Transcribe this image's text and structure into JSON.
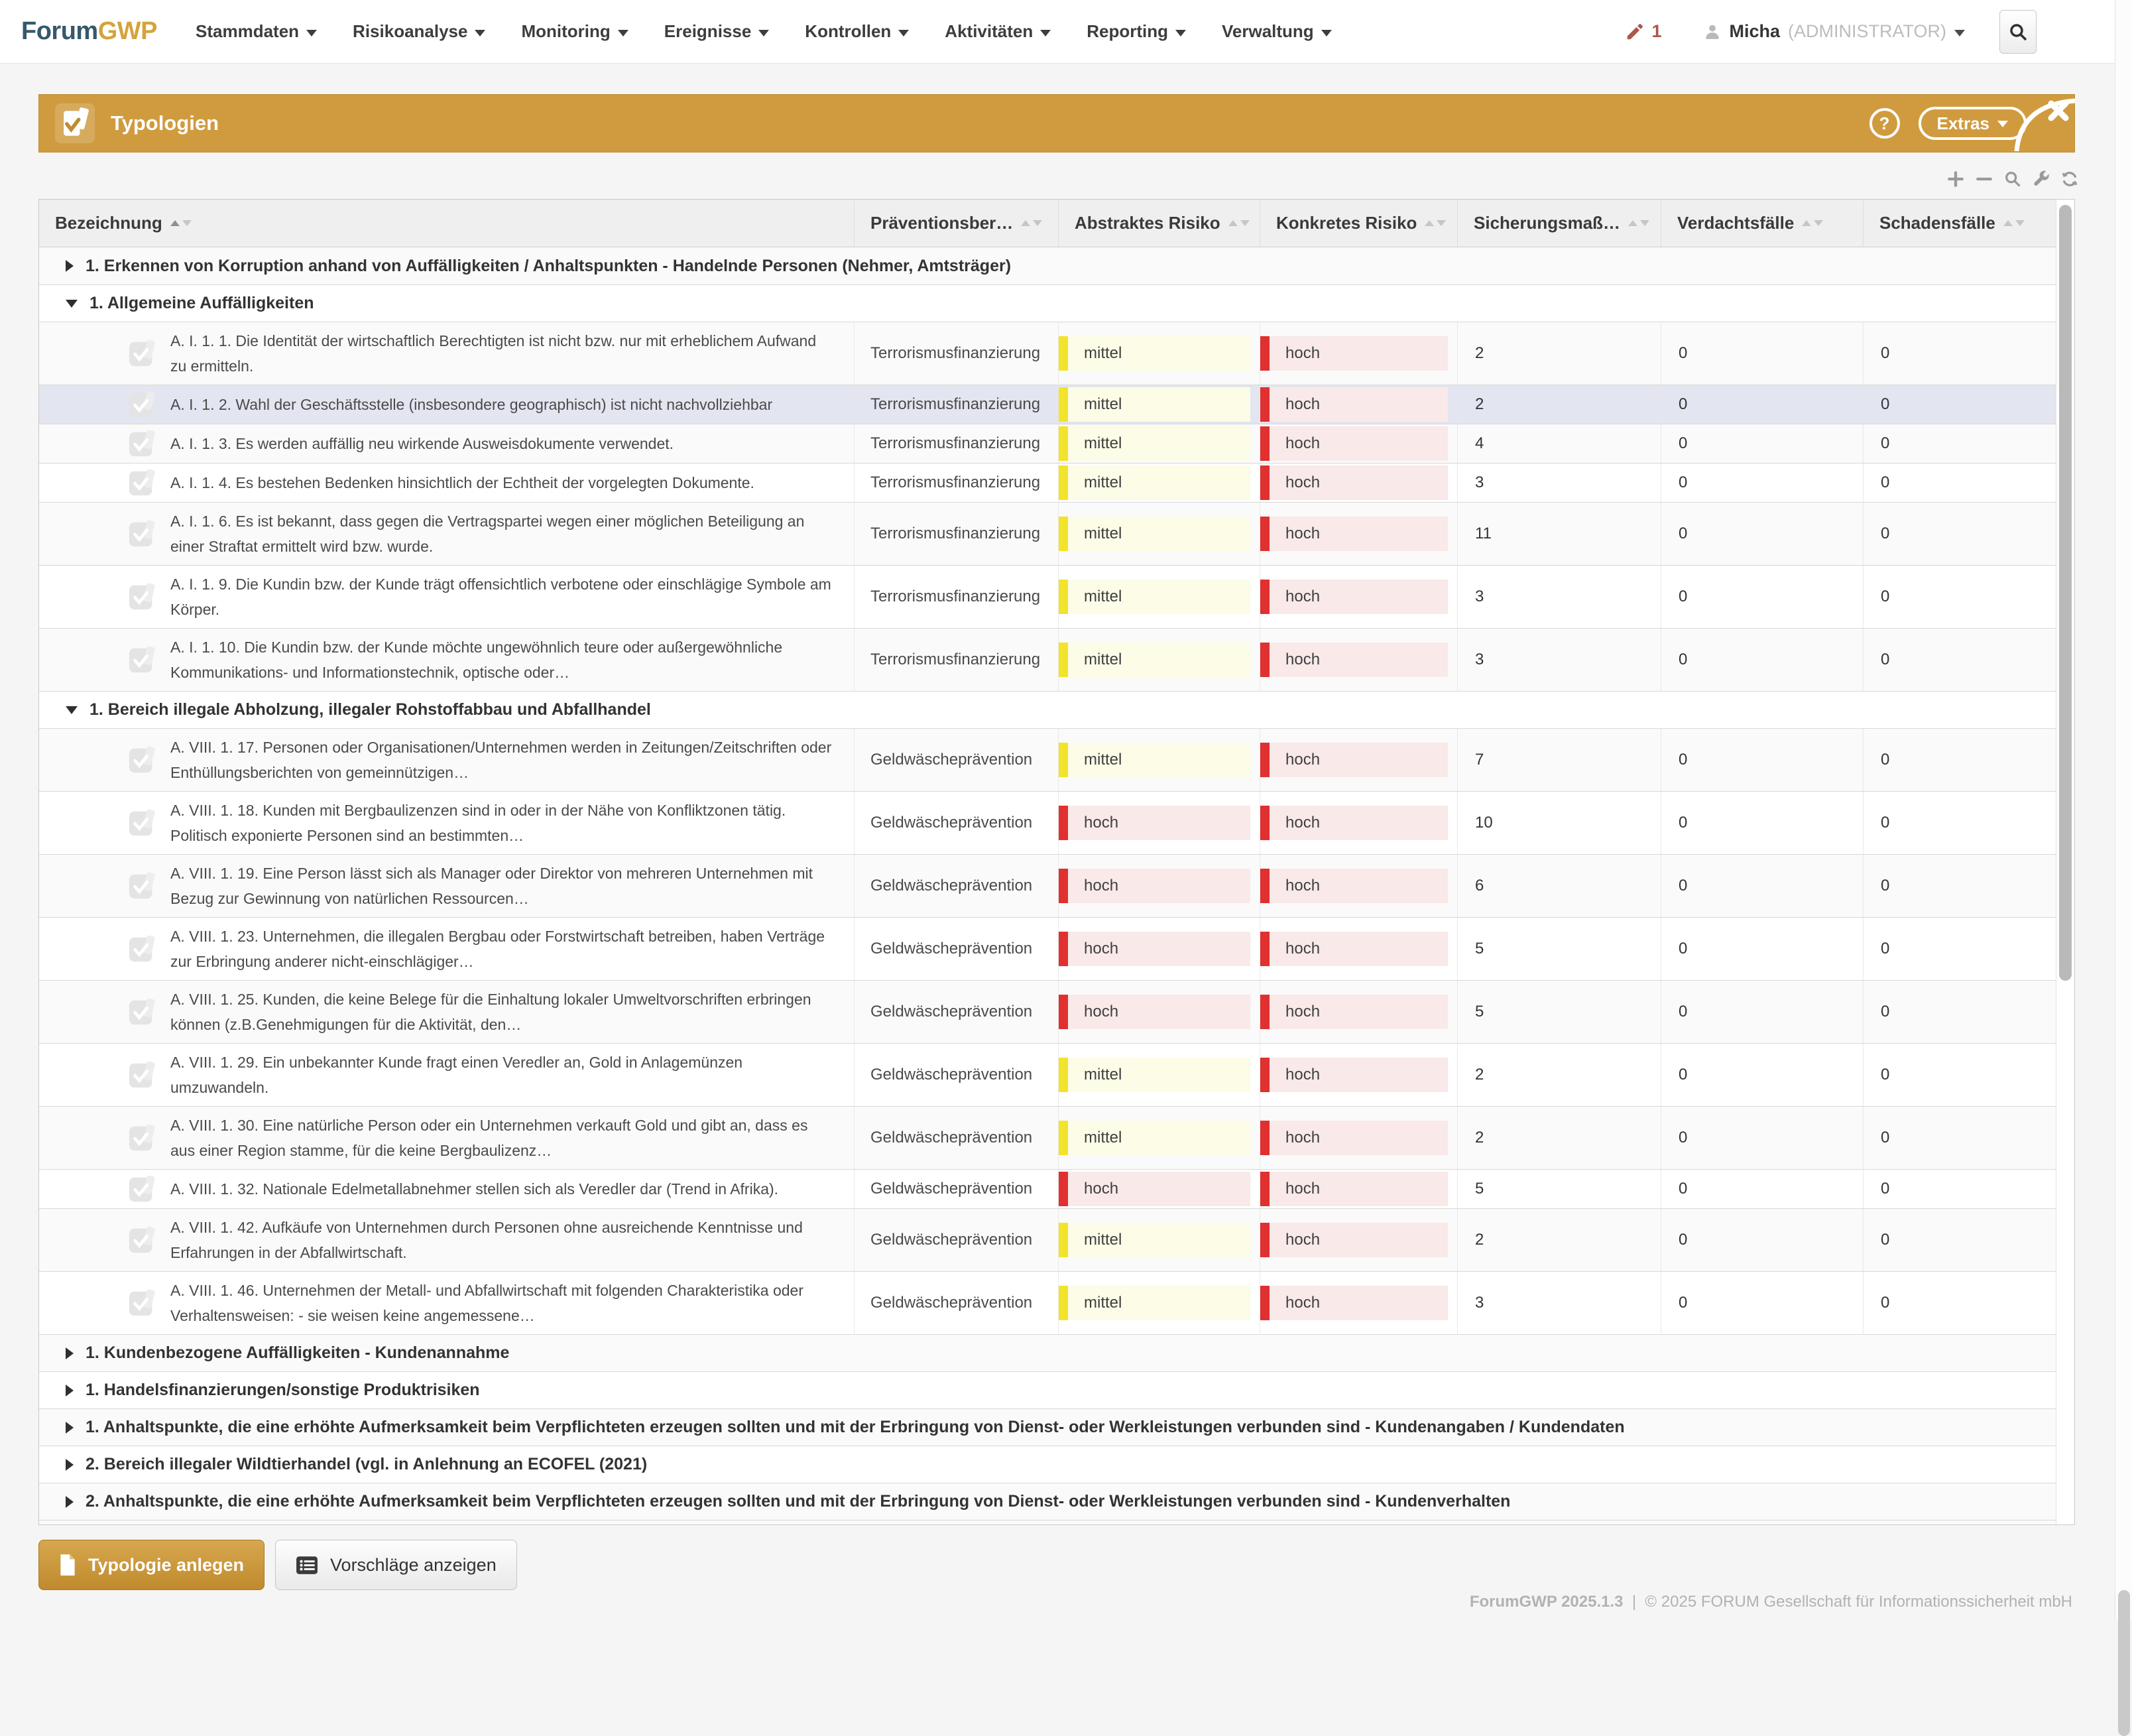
{
  "brand": {
    "first": "Forum",
    "second": "GWP"
  },
  "nav": {
    "items": [
      "Stammdaten",
      "Risikoanalyse",
      "Monitoring",
      "Ereignisse",
      "Kontrollen",
      "Aktivitäten",
      "Reporting",
      "Verwaltung"
    ],
    "edit_count": "1",
    "user": {
      "name": "Micha",
      "role": "(ADMINISTRATOR)"
    }
  },
  "panel": {
    "title": "Typologien",
    "help_label": "?",
    "extras_label": "Extras"
  },
  "toolbar": {
    "icons": [
      "add-icon",
      "remove-icon",
      "search-icon",
      "wrench-icon",
      "refresh-icon"
    ]
  },
  "colors": {
    "accent": "#d09b3f",
    "highlight_row": "#e3e5f0",
    "risk": {
      "mittel": {
        "bar": "#f2e32b",
        "bg": "#fcfce7"
      },
      "hoch": {
        "bar": "#e03030",
        "bg": "#f9e9e9"
      }
    }
  },
  "table": {
    "columns": [
      "Bezeichnung",
      "Präventionsber…",
      "Abstraktes Risiko",
      "Konkretes Risiko",
      "Sicherungsmaß…",
      "Verdachtsfälle",
      "Schadensfälle"
    ],
    "rows": [
      {
        "type": "group",
        "expanded": false,
        "label": "1. Erkennen von Korruption anhand von Auffälligkeiten / Anhaltspunkten - Handelnde Personen (Nehmer, Amtsträger)"
      },
      {
        "type": "group",
        "expanded": true,
        "label": "1. Allgemeine Auffälligkeiten"
      },
      {
        "type": "item",
        "name": "A. I. 1. 1. Die Identität der wirtschaftlich Berechtigten ist nicht bzw. nur mit erheblichem Aufwand zu ermitteln.",
        "prevention": "Terrorismusfinanzierung",
        "abstract": "mittel",
        "concrete": "hoch",
        "measures": "2",
        "suspicions": "0",
        "damages": "0",
        "highlighted": false
      },
      {
        "type": "item",
        "name": "A. I. 1. 2. Wahl der Geschäftsstelle (insbesondere geographisch) ist nicht nachvollziehbar",
        "prevention": "Terrorismusfinanzierung",
        "abstract": "mittel",
        "concrete": "hoch",
        "measures": "2",
        "suspicions": "0",
        "damages": "0",
        "highlighted": true
      },
      {
        "type": "item",
        "name": "A. I. 1. 3. Es werden auffällig neu wirkende Ausweisdokumente verwendet.",
        "prevention": "Terrorismusfinanzierung",
        "abstract": "mittel",
        "concrete": "hoch",
        "measures": "4",
        "suspicions": "0",
        "damages": "0",
        "highlighted": false
      },
      {
        "type": "item",
        "name": "A. I. 1. 4. Es bestehen Bedenken hinsichtlich der Echtheit der vorgelegten Dokumente.",
        "prevention": "Terrorismusfinanzierung",
        "abstract": "mittel",
        "concrete": "hoch",
        "measures": "3",
        "suspicions": "0",
        "damages": "0",
        "highlighted": false
      },
      {
        "type": "item",
        "name": "A. I. 1. 6. Es ist bekannt, dass gegen die Vertragspartei wegen einer möglichen Beteiligung an einer Straftat ermittelt wird bzw. wurde.",
        "prevention": "Terrorismusfinanzierung",
        "abstract": "mittel",
        "concrete": "hoch",
        "measures": "11",
        "suspicions": "0",
        "damages": "0",
        "highlighted": false
      },
      {
        "type": "item",
        "name": "A. I. 1. 9. Die Kundin bzw. der Kunde trägt offensichtlich verbotene oder einschlägige Symbole am Körper.",
        "prevention": "Terrorismusfinanzierung",
        "abstract": "mittel",
        "concrete": "hoch",
        "measures": "3",
        "suspicions": "0",
        "damages": "0",
        "highlighted": false
      },
      {
        "type": "item",
        "name": "A. I. 1. 10. Die Kundin bzw. der Kunde möchte ungewöhnlich teure oder außergewöhnliche Kommunikations- und Informationstechnik, optische oder…",
        "prevention": "Terrorismusfinanzierung",
        "abstract": "mittel",
        "concrete": "hoch",
        "measures": "3",
        "suspicions": "0",
        "damages": "0",
        "highlighted": false
      },
      {
        "type": "group",
        "expanded": true,
        "label": "1. Bereich illegale Abholzung, illegaler Rohstoffabbau und Abfallhandel"
      },
      {
        "type": "item",
        "name": "A. VIII. 1. 17. Personen oder Organisationen/Unternehmen werden in Zeitungen/Zeitschriften oder Enthüllungsberichten von gemeinnützigen…",
        "prevention": "Geldwäscheprävention",
        "abstract": "mittel",
        "concrete": "hoch",
        "measures": "7",
        "suspicions": "0",
        "damages": "0",
        "highlighted": false
      },
      {
        "type": "item",
        "name": "A. VIII. 1. 18. Kunden mit Bergbaulizenzen sind in oder in der Nähe von Konfliktzonen tätig. Politisch exponierte Personen sind an bestimmten…",
        "prevention": "Geldwäscheprävention",
        "abstract": "hoch",
        "concrete": "hoch",
        "measures": "10",
        "suspicions": "0",
        "damages": "0",
        "highlighted": false
      },
      {
        "type": "item",
        "name": "A. VIII. 1. 19. Eine Person lässt sich als Manager oder Direktor von mehreren Unternehmen mit Bezug zur Gewinnung von natürlichen Ressourcen…",
        "prevention": "Geldwäscheprävention",
        "abstract": "hoch",
        "concrete": "hoch",
        "measures": "6",
        "suspicions": "0",
        "damages": "0",
        "highlighted": false
      },
      {
        "type": "item",
        "name": "A. VIII. 1. 23. Unternehmen, die illegalen Bergbau oder Forstwirtschaft betreiben, haben Verträge zur Erbringung anderer nicht-einschlägiger…",
        "prevention": "Geldwäscheprävention",
        "abstract": "hoch",
        "concrete": "hoch",
        "measures": "5",
        "suspicions": "0",
        "damages": "0",
        "highlighted": false
      },
      {
        "type": "item",
        "name": "A. VIII. 1. 25. Kunden, die keine Belege für die Einhaltung lokaler Umweltvorschriften erbringen können (z.B.Genehmigungen für die Aktivität, den…",
        "prevention": "Geldwäscheprävention",
        "abstract": "hoch",
        "concrete": "hoch",
        "measures": "5",
        "suspicions": "0",
        "damages": "0",
        "highlighted": false
      },
      {
        "type": "item",
        "name": "A. VIII. 1. 29. Ein unbekannter Kunde fragt einen Veredler an, Gold in Anlagemünzen umzuwandeln.",
        "prevention": "Geldwäscheprävention",
        "abstract": "mittel",
        "concrete": "hoch",
        "measures": "2",
        "suspicions": "0",
        "damages": "0",
        "highlighted": false
      },
      {
        "type": "item",
        "name": "A. VIII. 1. 30. Eine natürliche Person oder ein Unternehmen verkauft Gold und gibt an, dass es aus einer Region stamme, für die keine Bergbaulizenz…",
        "prevention": "Geldwäscheprävention",
        "abstract": "mittel",
        "concrete": "hoch",
        "measures": "2",
        "suspicions": "0",
        "damages": "0",
        "highlighted": false
      },
      {
        "type": "item",
        "name": "A. VIII. 1. 32. Nationale Edelmetallabnehmer stellen sich als Veredler dar (Trend in Afrika).",
        "prevention": "Geldwäscheprävention",
        "abstract": "hoch",
        "concrete": "hoch",
        "measures": "5",
        "suspicions": "0",
        "damages": "0",
        "highlighted": false
      },
      {
        "type": "item",
        "name": "A. VIII. 1. 42. Aufkäufe von Unternehmen durch Personen ohne ausreichende Kenntnisse und Erfahrungen in der Abfallwirtschaft.",
        "prevention": "Geldwäscheprävention",
        "abstract": "mittel",
        "concrete": "hoch",
        "measures": "2",
        "suspicions": "0",
        "damages": "0",
        "highlighted": false
      },
      {
        "type": "item",
        "name": "A. VIII. 1. 46. Unternehmen der Metall- und Abfallwirtschaft mit folgenden Charakteristika oder Verhaltensweisen: - sie weisen keine angemessene…",
        "prevention": "Geldwäscheprävention",
        "abstract": "mittel",
        "concrete": "hoch",
        "measures": "3",
        "suspicions": "0",
        "damages": "0",
        "highlighted": false
      },
      {
        "type": "group",
        "expanded": false,
        "label": "1. Kundenbezogene Auffälligkeiten - Kundenannahme"
      },
      {
        "type": "group",
        "expanded": false,
        "label": "1. Handelsfinanzierungen/sonstige Produktrisiken"
      },
      {
        "type": "group",
        "expanded": false,
        "label": "1. Anhaltspunkte, die eine erhöhte Aufmerksamkeit beim Verpflichteten erzeugen sollten und mit der Erbringung von Dienst- oder Werkleistungen verbunden sind - Kundenangaben / Kundendaten"
      },
      {
        "type": "group",
        "expanded": false,
        "label": "2. Bereich illegaler Wildtierhandel (vgl. in Anlehnung an ECOFEL (2021)"
      },
      {
        "type": "group",
        "expanded": false,
        "label": "2. Anhaltspunkte, die eine erhöhte Aufmerksamkeit beim Verpflichteten erzeugen sollten und mit der Erbringung von Dienst- oder Werkleistungen verbunden sind - Kundenverhalten"
      }
    ]
  },
  "actions": {
    "create_label": "Typologie anlegen",
    "suggestions_label": "Vorschläge anzeigen"
  },
  "footer": {
    "version": "ForumGWP 2025.1.3",
    "separator": "|",
    "copyright": "© 2025 FORUM Gesellschaft für Informationssicherheit mbH"
  }
}
